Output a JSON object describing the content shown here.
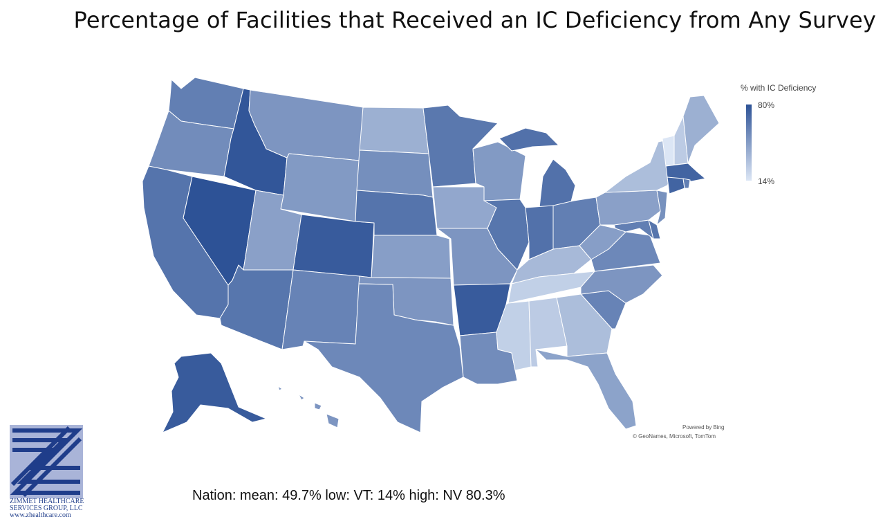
{
  "title": "Percentage of Facilities that Received an IC Deficiency from Any Survey",
  "legend": {
    "title": "% with IC Deficiency",
    "max_label": "80%",
    "min_label": "14%",
    "max_value": 80,
    "min_value": 14,
    "color_high": "#2d5296",
    "color_low": "#dce6f5"
  },
  "attribution": {
    "powered": "Powered by Bing",
    "sources": "© GeoNames, Microsoft, TomTom"
  },
  "summary": "Nation: mean: 49.7% low: VT: 14% high: NV 80.3%",
  "logo": {
    "line1": "ZIMMET HEALTHCARE",
    "line2": "SERVICES GROUP, LLC",
    "website": "www.zhealthcare.com"
  },
  "states": {
    "WA": 60,
    "OR": 54,
    "CA": 65,
    "NV": 80.3,
    "ID": 78,
    "MT": 50,
    "WY": 48,
    "UT": 45,
    "AZ": 64,
    "CO": 76,
    "NM": 58,
    "ND": 38,
    "SD": 53,
    "NE": 65,
    "KS": 46,
    "OK": 50,
    "TX": 56,
    "MN": 63,
    "IA": 42,
    "MO": 50,
    "AR": 76,
    "LA": 54,
    "WI": 48,
    "IL": 64,
    "MI": 66,
    "IN": 66,
    "OH": 60,
    "KY": 34,
    "TN": 24,
    "MS": 24,
    "AL": 26,
    "GA": 32,
    "FL": 44,
    "SC": 58,
    "NC": 50,
    "VA": 56,
    "WV": 46,
    "PA": 45,
    "NY": 32,
    "VT": 14,
    "NH": 26,
    "ME": 38,
    "MA": 72,
    "CT": 72,
    "RI": 60,
    "NJ": 52,
    "DE": 64,
    "MD": 60,
    "AK": 76,
    "HI": 50
  }
}
